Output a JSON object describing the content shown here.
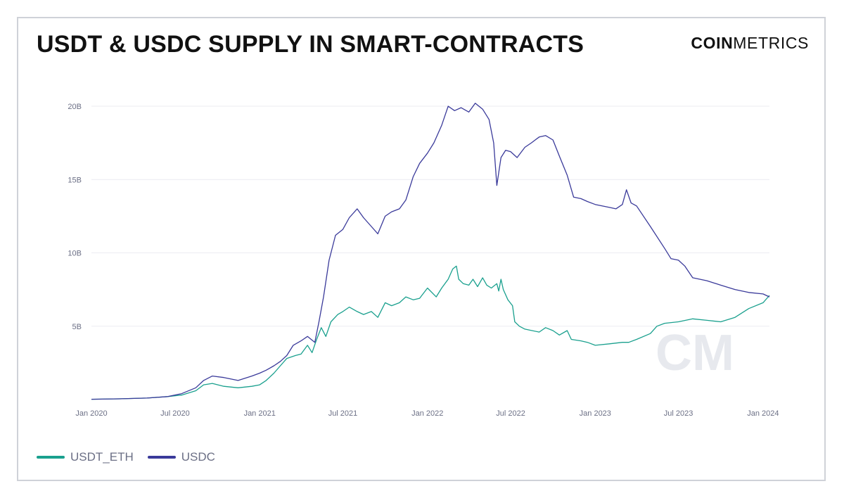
{
  "header": {
    "title": "USDT & USDC SUPPLY IN SMART-CONTRACTS",
    "logo_bold": "COIN",
    "logo_light": "METRICS",
    "watermark": "CM"
  },
  "colors": {
    "usdt_eth": "#1aa08e",
    "usdc": "#3a3a9a",
    "grid": "#ececf2",
    "watermark": "#d9dce4"
  },
  "chart_data": {
    "type": "line",
    "title": "USDT & USDC SUPPLY IN SMART-CONTRACTS",
    "xlabel": "",
    "ylabel": "",
    "x_range": [
      "2020-01-01",
      "2024-01-15"
    ],
    "ylim": [
      0,
      20000000000
    ],
    "y_ticks": [
      5000000000,
      10000000000,
      15000000000,
      20000000000
    ],
    "y_tick_labels": [
      "5B",
      "10B",
      "15B",
      "20B"
    ],
    "x_ticks": [
      "2020-01-01",
      "2020-07-01",
      "2021-01-01",
      "2021-07-01",
      "2022-01-01",
      "2022-07-01",
      "2023-01-01",
      "2023-07-01",
      "2024-01-01"
    ],
    "x_tick_labels": [
      "Jan 2020",
      "Jul 2020",
      "Jan 2021",
      "Jul 2021",
      "Jan 2022",
      "Jul 2022",
      "Jan 2023",
      "Jul 2023",
      "Jan 2024"
    ],
    "grid": true,
    "legend_position": "bottom-left",
    "series": [
      {
        "name": "USDT_ETH",
        "points": [
          [
            "2020-01-01",
            0.02
          ],
          [
            "2020-03-01",
            0.05
          ],
          [
            "2020-05-01",
            0.1
          ],
          [
            "2020-06-15",
            0.2
          ],
          [
            "2020-07-15",
            0.3
          ],
          [
            "2020-08-15",
            0.6
          ],
          [
            "2020-09-01",
            1.0
          ],
          [
            "2020-09-20",
            1.1
          ],
          [
            "2020-10-15",
            0.9
          ],
          [
            "2020-11-15",
            0.8
          ],
          [
            "2020-12-15",
            0.9
          ],
          [
            "2021-01-01",
            1.0
          ],
          [
            "2021-01-15",
            1.3
          ],
          [
            "2021-02-01",
            1.8
          ],
          [
            "2021-02-15",
            2.3
          ],
          [
            "2021-03-01",
            2.8
          ],
          [
            "2021-03-20",
            3.0
          ],
          [
            "2021-04-01",
            3.1
          ],
          [
            "2021-04-15",
            3.7
          ],
          [
            "2021-04-25",
            3.2
          ],
          [
            "2021-05-05",
            4.1
          ],
          [
            "2021-05-15",
            4.9
          ],
          [
            "2021-05-25",
            4.3
          ],
          [
            "2021-06-05",
            5.3
          ],
          [
            "2021-06-20",
            5.8
          ],
          [
            "2021-07-01",
            6.0
          ],
          [
            "2021-07-15",
            6.3
          ],
          [
            "2021-08-01",
            6.0
          ],
          [
            "2021-08-15",
            5.8
          ],
          [
            "2021-09-01",
            6.0
          ],
          [
            "2021-09-15",
            5.6
          ],
          [
            "2021-10-01",
            6.6
          ],
          [
            "2021-10-15",
            6.4
          ],
          [
            "2021-11-01",
            6.6
          ],
          [
            "2021-11-15",
            7.0
          ],
          [
            "2021-12-01",
            6.8
          ],
          [
            "2021-12-15",
            6.9
          ],
          [
            "2022-01-01",
            7.6
          ],
          [
            "2022-01-20",
            7.0
          ],
          [
            "2022-02-01",
            7.6
          ],
          [
            "2022-02-15",
            8.2
          ],
          [
            "2022-02-25",
            8.9
          ],
          [
            "2022-03-05",
            9.1
          ],
          [
            "2022-03-10",
            8.2
          ],
          [
            "2022-03-20",
            7.9
          ],
          [
            "2022-04-01",
            7.8
          ],
          [
            "2022-04-10",
            8.2
          ],
          [
            "2022-04-20",
            7.7
          ],
          [
            "2022-05-01",
            8.3
          ],
          [
            "2022-05-10",
            7.8
          ],
          [
            "2022-05-20",
            7.6
          ],
          [
            "2022-06-01",
            7.9
          ],
          [
            "2022-06-05",
            7.4
          ],
          [
            "2022-06-10",
            8.2
          ],
          [
            "2022-06-15",
            7.5
          ],
          [
            "2022-06-25",
            6.8
          ],
          [
            "2022-07-05",
            6.4
          ],
          [
            "2022-07-10",
            5.3
          ],
          [
            "2022-07-20",
            5.0
          ],
          [
            "2022-08-01",
            4.8
          ],
          [
            "2022-09-01",
            4.6
          ],
          [
            "2022-09-15",
            4.9
          ],
          [
            "2022-10-01",
            4.7
          ],
          [
            "2022-10-15",
            4.4
          ],
          [
            "2022-11-01",
            4.7
          ],
          [
            "2022-11-10",
            4.1
          ],
          [
            "2022-12-01",
            4.0
          ],
          [
            "2022-12-15",
            3.9
          ],
          [
            "2023-01-01",
            3.7
          ],
          [
            "2023-02-01",
            3.8
          ],
          [
            "2023-03-01",
            3.9
          ],
          [
            "2023-03-15",
            3.9
          ],
          [
            "2023-04-01",
            4.1
          ],
          [
            "2023-05-01",
            4.5
          ],
          [
            "2023-05-15",
            5.0
          ],
          [
            "2023-06-01",
            5.2
          ],
          [
            "2023-07-01",
            5.3
          ],
          [
            "2023-08-01",
            5.5
          ],
          [
            "2023-09-01",
            5.4
          ],
          [
            "2023-10-01",
            5.3
          ],
          [
            "2023-11-01",
            5.6
          ],
          [
            "2023-12-01",
            6.2
          ],
          [
            "2024-01-01",
            6.6
          ],
          [
            "2024-01-15",
            7.1
          ]
        ]
      },
      {
        "name": "USDC",
        "points": [
          [
            "2020-01-01",
            0.02
          ],
          [
            "2020-03-01",
            0.05
          ],
          [
            "2020-05-01",
            0.1
          ],
          [
            "2020-06-15",
            0.2
          ],
          [
            "2020-07-15",
            0.4
          ],
          [
            "2020-08-15",
            0.8
          ],
          [
            "2020-09-01",
            1.3
          ],
          [
            "2020-09-20",
            1.6
          ],
          [
            "2020-10-15",
            1.5
          ],
          [
            "2020-11-15",
            1.3
          ],
          [
            "2020-12-15",
            1.6
          ],
          [
            "2021-01-01",
            1.8
          ],
          [
            "2021-01-15",
            2.0
          ],
          [
            "2021-02-01",
            2.3
          ],
          [
            "2021-02-15",
            2.6
          ],
          [
            "2021-03-01",
            3.0
          ],
          [
            "2021-03-15",
            3.7
          ],
          [
            "2021-04-01",
            4.0
          ],
          [
            "2021-04-15",
            4.3
          ],
          [
            "2021-05-01",
            3.9
          ],
          [
            "2021-05-10",
            5.3
          ],
          [
            "2021-05-20",
            7.0
          ],
          [
            "2021-06-01",
            9.5
          ],
          [
            "2021-06-15",
            11.2
          ],
          [
            "2021-07-01",
            11.6
          ],
          [
            "2021-07-15",
            12.4
          ],
          [
            "2021-08-01",
            13.0
          ],
          [
            "2021-08-15",
            12.4
          ],
          [
            "2021-09-01",
            11.8
          ],
          [
            "2021-09-15",
            11.3
          ],
          [
            "2021-10-01",
            12.5
          ],
          [
            "2021-10-15",
            12.8
          ],
          [
            "2021-11-01",
            13.0
          ],
          [
            "2021-11-15",
            13.6
          ],
          [
            "2021-12-01",
            15.2
          ],
          [
            "2021-12-15",
            16.1
          ],
          [
            "2022-01-01",
            16.8
          ],
          [
            "2022-01-15",
            17.5
          ],
          [
            "2022-02-01",
            18.7
          ],
          [
            "2022-02-15",
            20.0
          ],
          [
            "2022-03-01",
            19.7
          ],
          [
            "2022-03-15",
            19.9
          ],
          [
            "2022-04-01",
            19.6
          ],
          [
            "2022-04-15",
            20.2
          ],
          [
            "2022-05-01",
            19.8
          ],
          [
            "2022-05-15",
            19.1
          ],
          [
            "2022-05-25",
            17.5
          ],
          [
            "2022-06-01",
            14.6
          ],
          [
            "2022-06-10",
            16.5
          ],
          [
            "2022-06-20",
            17.0
          ],
          [
            "2022-07-01",
            16.9
          ],
          [
            "2022-07-15",
            16.5
          ],
          [
            "2022-08-01",
            17.2
          ],
          [
            "2022-08-15",
            17.5
          ],
          [
            "2022-09-01",
            17.9
          ],
          [
            "2022-09-15",
            18.0
          ],
          [
            "2022-10-01",
            17.7
          ],
          [
            "2022-10-15",
            16.6
          ],
          [
            "2022-11-01",
            15.3
          ],
          [
            "2022-11-15",
            13.8
          ],
          [
            "2022-12-01",
            13.7
          ],
          [
            "2022-12-15",
            13.5
          ],
          [
            "2023-01-01",
            13.3
          ],
          [
            "2023-02-01",
            13.1
          ],
          [
            "2023-02-15",
            13.0
          ],
          [
            "2023-03-01",
            13.3
          ],
          [
            "2023-03-10",
            14.3
          ],
          [
            "2023-03-20",
            13.4
          ],
          [
            "2023-04-01",
            13.2
          ],
          [
            "2023-05-01",
            11.8
          ],
          [
            "2023-06-01",
            10.3
          ],
          [
            "2023-06-15",
            9.6
          ],
          [
            "2023-07-01",
            9.5
          ],
          [
            "2023-07-15",
            9.1
          ],
          [
            "2023-08-01",
            8.3
          ],
          [
            "2023-09-01",
            8.1
          ],
          [
            "2023-10-01",
            7.8
          ],
          [
            "2023-11-01",
            7.5
          ],
          [
            "2023-12-01",
            7.3
          ],
          [
            "2024-01-01",
            7.2
          ],
          [
            "2024-01-15",
            7.0
          ]
        ]
      }
    ]
  },
  "legend": {
    "items": [
      {
        "label": "USDT_ETH"
      },
      {
        "label": "USDC"
      }
    ]
  }
}
